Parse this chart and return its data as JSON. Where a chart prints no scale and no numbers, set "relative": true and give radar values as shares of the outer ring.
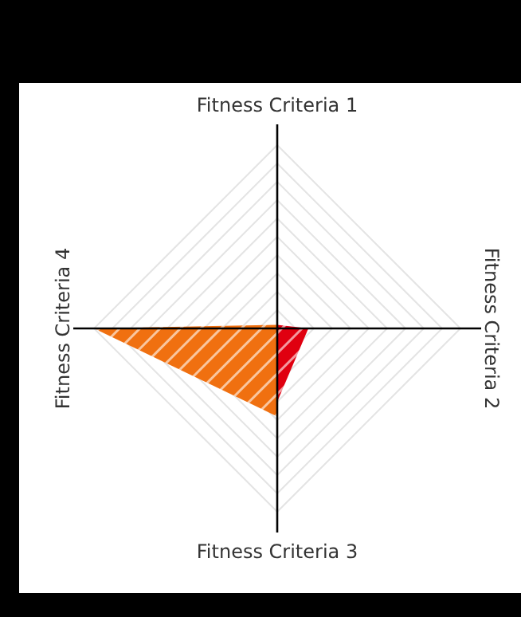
{
  "chart_data": {
    "type": "radar",
    "relative": true,
    "grid": true,
    "categories": [
      "Fitness Criteria 1",
      "Fitness Criteria 2",
      "Fitness Criteria 3",
      "Fitness Criteria 4"
    ],
    "series": [
      {
        "color": "#f07010",
        "values": [
          0.02,
          0.0,
          0.48,
          1.0
        ]
      },
      {
        "color": "#e00010",
        "values": [
          0.02,
          0.17,
          0.4,
          0.0
        ]
      }
    ]
  }
}
